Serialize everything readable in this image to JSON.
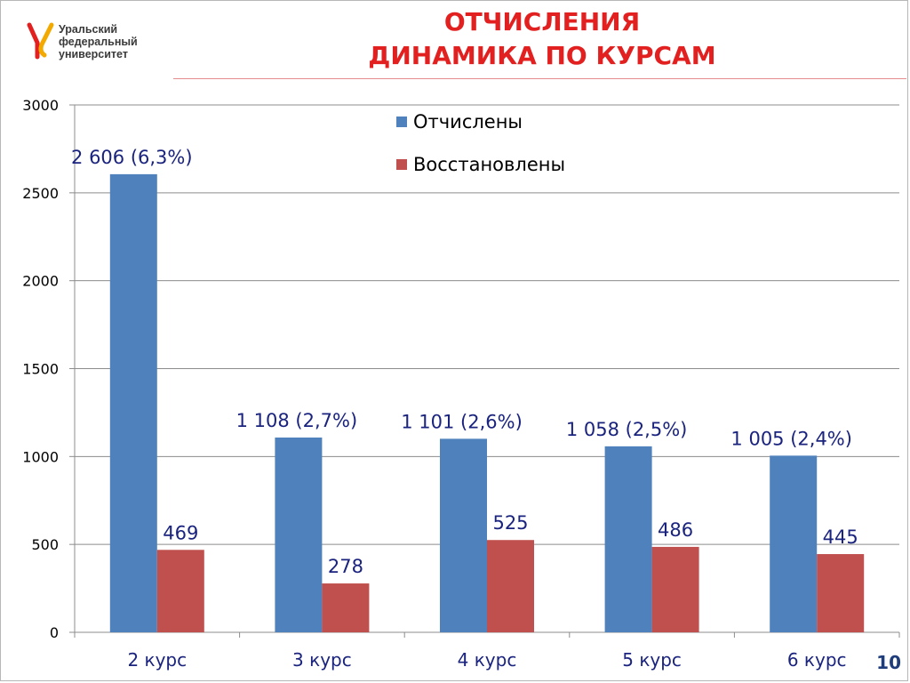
{
  "header": {
    "logo_lines": [
      "Уральский",
      "федеральный",
      "университет"
    ],
    "title_line1": "ОТЧИСЛЕНИЯ",
    "title_line2": "ДИНАМИКА ПО КУРСАМ"
  },
  "page_number": "10",
  "colors": {
    "title": "#e2201f",
    "series_expelled": "#4f81bd",
    "series_restored": "#c0504d",
    "label_text": "#1a237e"
  },
  "chart_data": {
    "type": "bar",
    "categories": [
      "2 курс",
      "3 курс",
      "4 курс",
      "5 курс",
      "6 курс"
    ],
    "series": [
      {
        "name": "Отчислены",
        "values": [
          2606,
          1108,
          1101,
          1058,
          1005
        ],
        "labels": [
          "2 606 (6,3%)",
          "1 108 (2,7%)",
          "1 101 (2,6%)",
          "1 058 (2,5%)",
          "1 005 (2,4%)"
        ]
      },
      {
        "name": "Восстановлены",
        "values": [
          469,
          278,
          525,
          486,
          445
        ],
        "labels": [
          "469",
          "278",
          "525",
          "486",
          "445"
        ]
      }
    ],
    "ylim": [
      0,
      3000
    ],
    "yticks": [
      0,
      500,
      1000,
      1500,
      2000,
      2500,
      3000
    ],
    "grid": true,
    "legend_position": "top-right-inside"
  }
}
